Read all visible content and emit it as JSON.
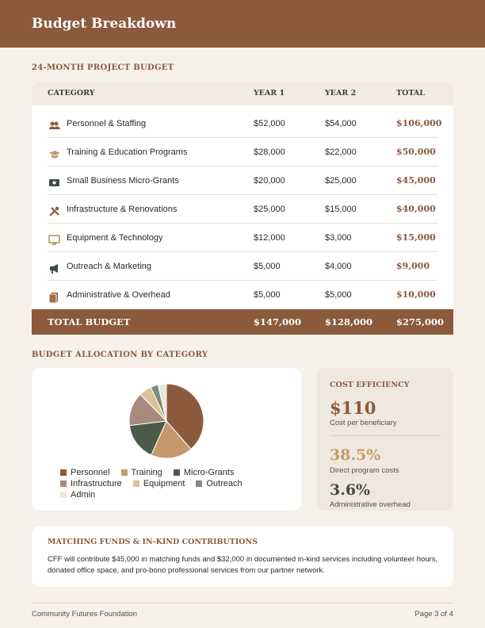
{
  "header": {
    "title": "Budget Breakdown"
  },
  "budget_section": {
    "title": "24-MONTH PROJECT BUDGET"
  },
  "table": {
    "columns": [
      "CATEGORY",
      "YEAR 1",
      "YEAR 2",
      "TOTAL"
    ],
    "rows": [
      [
        "Personnel & Staffing",
        "$52,000",
        "$54,000",
        "$106,000"
      ],
      [
        "Training & Education Programs",
        "$28,000",
        "$22,000",
        "$50,000"
      ],
      [
        "Small Business Micro-Grants",
        "$20,000",
        "$25,000",
        "$45,000"
      ],
      [
        "Infrastructure & Renovations",
        "$25,000",
        "$15,000",
        "$40,000"
      ],
      [
        "Equipment & Technology",
        "$12,000",
        "$3,000",
        "$15,000"
      ],
      [
        "Outreach & Marketing",
        "$5,000",
        "$4,000",
        "$9,000"
      ],
      [
        "Administrative & Overhead",
        "$5,000",
        "$5,000",
        "$10,000"
      ]
    ],
    "total_row": [
      "TOTAL BUDGET",
      "$147,000",
      "$128,000",
      "$275,000"
    ]
  },
  "allocation_section": {
    "title": "BUDGET ALLOCATION BY CATEGORY"
  },
  "chart_data": {
    "type": "pie",
    "categories": [
      "Personnel",
      "Training",
      "Micro-Grants",
      "Infrastructure",
      "Equipment",
      "Outreach",
      "Admin"
    ],
    "values": [
      106000,
      50000,
      45000,
      40000,
      15000,
      9000,
      10000
    ],
    "colors": [
      "#8b5a3c",
      "#c49a6c",
      "#4a5a4b",
      "#a88a7c",
      "#dcc09a",
      "#7d8b80",
      "#ebe7df"
    ]
  },
  "efficiency": {
    "title": "COST EFFICIENCY",
    "stats": [
      {
        "value": "$110",
        "label": "Cost per beneficiary"
      },
      {
        "value": "38.5%",
        "label": "Direct program costs"
      },
      {
        "value": "3.6%",
        "label": "Administrative overhead"
      }
    ]
  },
  "matching": {
    "title": "MATCHING FUNDS & IN-KIND CONTRIBUTIONS",
    "text": "CFF will contribute $45,000 in matching funds and $32,000 in documented in-kind services including volunteer hours, donated office space, and pro-bono professional services from our partner network."
  },
  "footer": {
    "left": "Community Futures Foundation",
    "right": "Page 3 of 4"
  }
}
